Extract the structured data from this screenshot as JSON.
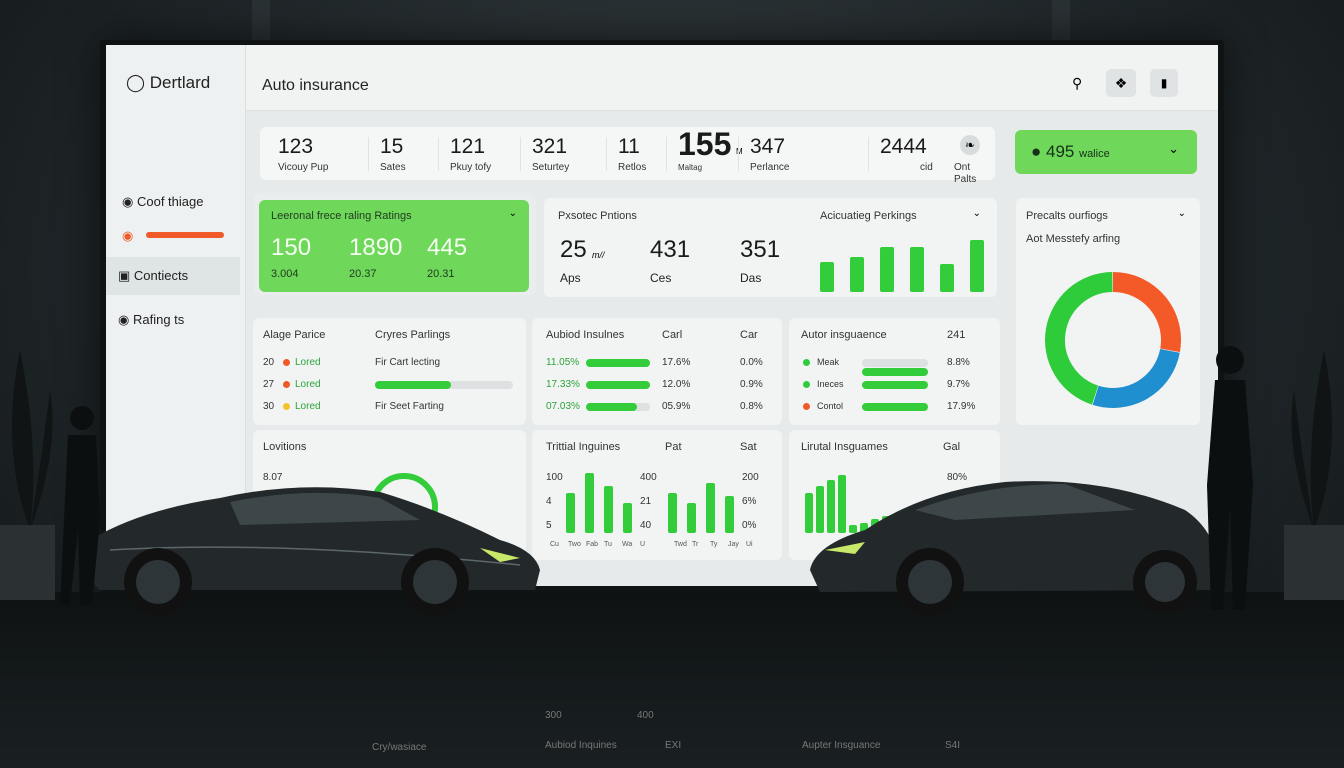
{
  "app": {
    "logo_icon": "gauge-icon",
    "name": "Dertlard",
    "title": "Auto insurance"
  },
  "header_icons": [
    "search-icon",
    "grid-icon",
    "wallet-icon"
  ],
  "sidebar": {
    "items": [
      {
        "icon": "circle-check-icon",
        "label": "Coof thiage"
      },
      {
        "icon": "alert-circle-icon",
        "label": "",
        "color": "#f05a28"
      },
      {
        "icon": "image-icon",
        "label": "Contiects",
        "active": true
      },
      {
        "icon": "circle-icon",
        "label": "Rafing ts"
      }
    ]
  },
  "stats": [
    {
      "value": "123",
      "label": "Vicouy Pup"
    },
    {
      "value": "15",
      "label": "Sates"
    },
    {
      "value": "121",
      "label": "Pkuy tofy"
    },
    {
      "value": "321",
      "label": "Seturtey"
    },
    {
      "value": "11",
      "label": "Retlos"
    },
    {
      "value": "155",
      "unit": "M",
      "label": "Maltag"
    },
    {
      "value": "347",
      "label": "Perlance"
    },
    {
      "value": "2444",
      "label": "cid"
    },
    {
      "value": "",
      "label": "Ont Palts",
      "icon": "feather-icon"
    }
  ],
  "user_dropdown": {
    "icon": "user-icon",
    "value": "495",
    "label": "walice"
  },
  "ratings_card": {
    "title": "Leeronal frece raling Ratings",
    "values": [
      {
        "v": "150",
        "s": "3.004"
      },
      {
        "v": "1890",
        "s": "20.37"
      },
      {
        "v": "445",
        "s": "20.31"
      }
    ]
  },
  "portions_card": {
    "title": "Pxsotec Pntions",
    "values": [
      {
        "v": "25",
        "unit": "m//",
        "s": "Aps"
      },
      {
        "v": "431",
        "s": "Ces"
      },
      {
        "v": "351",
        "s": "Das"
      }
    ],
    "chart_title": "Acicuatieg Perkings",
    "bars": [
      30,
      35,
      45,
      45,
      28,
      52
    ]
  },
  "donut_card": {
    "title": "Precalts ourfiogs",
    "subtitle": "Aot Messtefy arfing",
    "segments": [
      {
        "value": 45,
        "color": "#2ecc3b"
      },
      {
        "value": 28,
        "color": "#f45a28"
      },
      {
        "value": 27,
        "color": "#1f8fcf"
      }
    ]
  },
  "prices_card": {
    "title": "Alage Parice",
    "col2": "Cryres Parlings",
    "rows": [
      {
        "n": "20",
        "label": "Lored",
        "color": "#f05a28",
        "text": "Fir Cart lecting"
      },
      {
        "n": "27",
        "label": "Lored",
        "color": "#f05a28",
        "progress": 0.55
      },
      {
        "n": "30",
        "label": "Lored",
        "color": "#f2c12e",
        "text": "Fir Seet Farting"
      }
    ]
  },
  "audit_card": {
    "title": "Aubiod Insulnes",
    "col2": "Carl",
    "col3": "Car",
    "rows": [
      {
        "a": "11.05%",
        "fill": 1.0,
        "b": "17.6%",
        "c": "0.0%"
      },
      {
        "a": "17.33%",
        "fill": 1.0,
        "b": "12.0%",
        "c": "0.9%"
      },
      {
        "a": "07.03%",
        "fill": 0.8,
        "b": "05.9%",
        "c": "0.8%"
      }
    ]
  },
  "auto_card": {
    "title": "Autor insguaence",
    "col2": "241",
    "rows": [
      {
        "label": "Meak",
        "color": "#2ecc3b",
        "b": "8.8%"
      },
      {
        "label": "Ineces",
        "color": "#2ecc3b",
        "b": "9.7%"
      },
      {
        "label": "Contol",
        "color": "#f05a28",
        "b": "17.9%"
      }
    ]
  },
  "locations_card": {
    "title": "Lovitions",
    "value": "8.07"
  },
  "trittial_card": {
    "title": "Trittial Inguines",
    "col2": "Pat",
    "col3": "Sat",
    "left_ticks": [
      "100",
      "4",
      "5"
    ],
    "mid_ticks": [
      "400",
      "21",
      "40"
    ],
    "right_ticks": [
      "200",
      "6%",
      "0%"
    ],
    "bars_a": [
      60,
      90,
      70,
      45
    ],
    "bars_b": [
      60,
      45,
      75,
      55
    ],
    "xlabels": [
      "Cu",
      "Two",
      "Fab",
      "Tu",
      "Wa",
      "U",
      "Twd",
      "Tr",
      "Ty",
      "Jay",
      "Ui"
    ]
  },
  "lirutal_card": {
    "title": "Lirutal Insguames",
    "col2": "Gal",
    "tick": "80%",
    "bars": [
      40,
      47,
      53,
      58,
      8,
      10,
      14,
      17
    ]
  },
  "reflection": {
    "left": "Cry/wasiace",
    "mid": "Aubiod Inquines",
    "mid2": "EXI",
    "right": "Aupter Insguance",
    "right2": "S4I",
    "ticks": [
      "300",
      "400"
    ]
  }
}
